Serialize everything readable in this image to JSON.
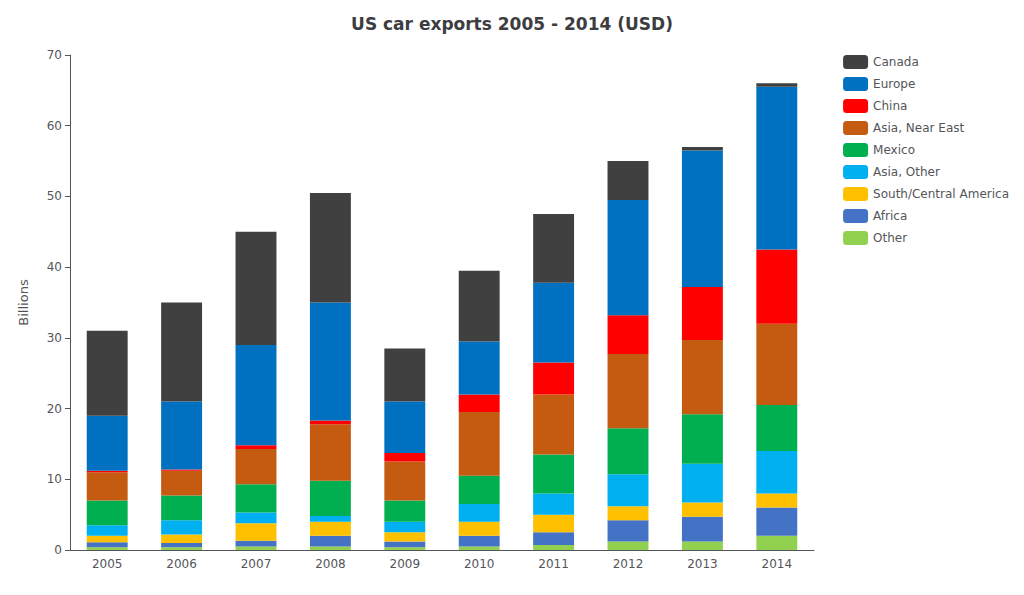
{
  "chart_data": {
    "type": "bar",
    "title": "US car exports 2005 - 2014 (USD)",
    "ylabel": "Billions",
    "categories": [
      "2005",
      "2006",
      "2007",
      "2008",
      "2009",
      "2010",
      "2011",
      "2012",
      "2013",
      "2014"
    ],
    "series": [
      {
        "name": "Other",
        "color": "#92d050",
        "values": [
          0.4,
          0.4,
          0.5,
          0.5,
          0.4,
          0.5,
          0.7,
          1.2,
          1.2,
          2.0
        ]
      },
      {
        "name": "Africa",
        "color": "#4472c4",
        "values": [
          0.7,
          0.6,
          0.8,
          1.5,
          0.8,
          1.5,
          1.8,
          3.0,
          3.5,
          4.0
        ]
      },
      {
        "name": "South/Central America",
        "color": "#ffc000",
        "values": [
          0.9,
          1.2,
          2.5,
          2.0,
          1.3,
          2.0,
          2.5,
          2.0,
          2.0,
          2.0
        ]
      },
      {
        "name": "Asia, Other",
        "color": "#00b0f0",
        "values": [
          1.5,
          2.0,
          1.5,
          0.8,
          1.5,
          2.5,
          3.0,
          4.5,
          5.5,
          6.0
        ]
      },
      {
        "name": "Mexico",
        "color": "#00b050",
        "values": [
          3.5,
          3.5,
          4.0,
          5.0,
          3.0,
          4.0,
          5.5,
          6.5,
          7.0,
          6.5
        ]
      },
      {
        "name": "Asia, Near East",
        "color": "#c55a11",
        "values": [
          4.0,
          3.5,
          5.0,
          8.0,
          5.5,
          9.0,
          8.5,
          10.5,
          10.5,
          11.5
        ]
      },
      {
        "name": "China",
        "color": "#ff0000",
        "values": [
          0.2,
          0.2,
          0.5,
          0.5,
          1.2,
          2.5,
          4.5,
          5.5,
          7.5,
          10.5
        ]
      },
      {
        "name": "Europe",
        "color": "#0070c0",
        "values": [
          7.8,
          9.6,
          14.2,
          16.7,
          7.3,
          7.5,
          11.3,
          16.3,
          19.3,
          23.0
        ]
      },
      {
        "name": "Canada",
        "color": "#404040",
        "values": [
          12.0,
          14.0,
          16.0,
          15.5,
          7.5,
          10.0,
          9.7,
          5.5,
          0.5,
          0.5
        ]
      }
    ],
    "ylim": [
      0,
      70
    ],
    "yticks": [
      0,
      10,
      20,
      30,
      40,
      50,
      60,
      70
    ],
    "stacked": true,
    "grid": false,
    "legend": "right"
  }
}
